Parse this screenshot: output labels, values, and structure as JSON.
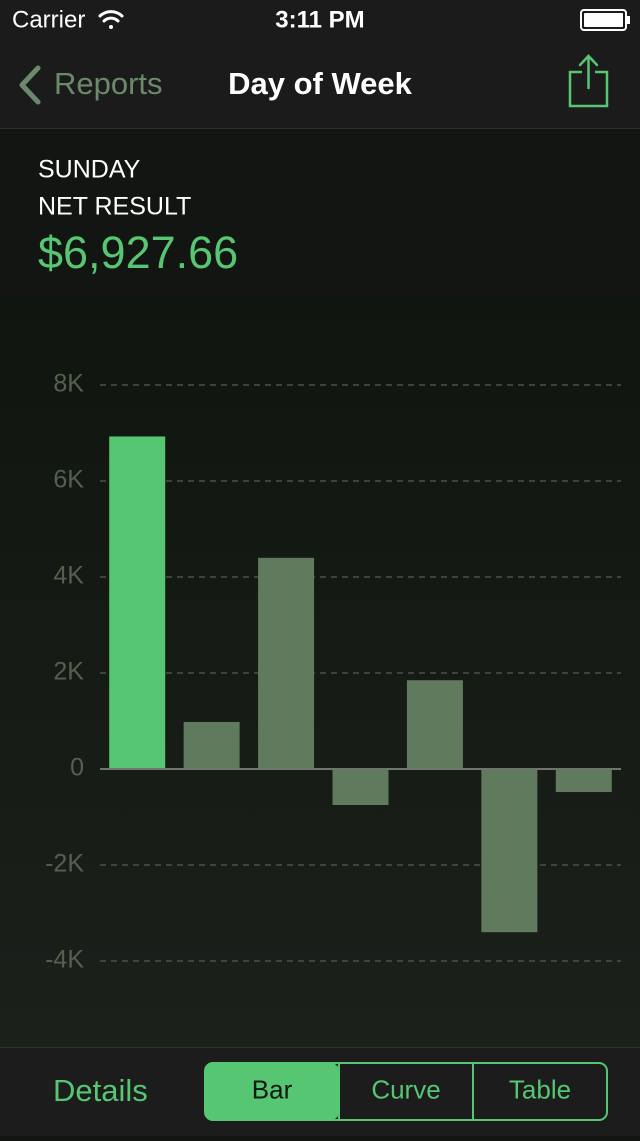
{
  "status_bar": {
    "carrier": "Carrier",
    "time": "3:11 PM"
  },
  "nav": {
    "back": "Reports",
    "title": "Day of Week"
  },
  "header": {
    "day": "SUNDAY",
    "metric": "NET RESULT",
    "value": "$6,927.66"
  },
  "chart_data": {
    "type": "bar",
    "values": [
      6927.66,
      980,
      4400,
      -750,
      1850,
      -3400,
      -480
    ],
    "ylim": [
      -4000,
      8000
    ],
    "yticks": [
      {
        "value": -4000,
        "label": "-4K"
      },
      {
        "value": -2000,
        "label": "-2K"
      },
      0,
      {
        "value": 2000,
        "label": "2K"
      },
      {
        "value": 4000,
        "label": "4K"
      },
      {
        "value": 6000,
        "label": "6K"
      },
      {
        "value": 8000,
        "label": "8K"
      }
    ],
    "grid": true,
    "color": "#5f7a5c",
    "highlight_color": "#57c673",
    "highlight_index": 0
  },
  "toolbar": {
    "details": "Details",
    "segments": [
      "Bar",
      "Curve",
      "Table"
    ],
    "selected": 0
  }
}
